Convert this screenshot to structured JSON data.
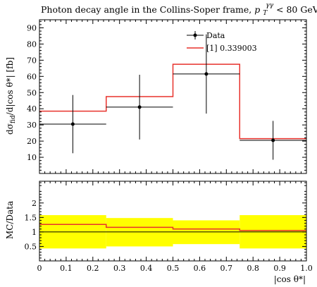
{
  "chart_data": {
    "type": "histogram",
    "title": "Photon decay angle in the Collins-Soper frame, p_T^γγ < 80 GeV",
    "title_main": "Photon decay angle in the Collins-Soper frame,",
    "title_cut_var": "p",
    "title_cut_sub": "T",
    "title_cut_sup": "γγ",
    "title_cut_rest": " < 80 GeV",
    "xlabel": "|cos θ*|",
    "ylabel_top": "dσfid/d|cos θ*| [fb]",
    "ylabel_top_parts": {
      "pre": "dσ",
      "sub": "fid",
      "post": "/d|cos θ*| [fb]"
    },
    "ylabel_bottom": "MC/Data",
    "xlim": [
      0,
      1.0
    ],
    "ylim_top": [
      0,
      95
    ],
    "ylim_bottom": [
      0,
      2.75
    ],
    "x_ticks": [
      "0",
      "0.1",
      "0.2",
      "0.3",
      "0.4",
      "0.5",
      "0.6",
      "0.7",
      "0.8",
      "0.9",
      "1.0"
    ],
    "y_ticks_top": [
      "10",
      "20",
      "30",
      "40",
      "50",
      "60",
      "70",
      "80",
      "90"
    ],
    "y_ticks_bottom": [
      "0.5",
      "1",
      "1.5",
      "2"
    ],
    "bin_edges": [
      0,
      0.25,
      0.5,
      0.75,
      1.0
    ],
    "series": [
      {
        "name": "Data",
        "kind": "points",
        "color": "#000000",
        "x": [
          0.125,
          0.375,
          0.625,
          0.875
        ],
        "y": [
          30.5,
          41.0,
          61.5,
          20.5
        ],
        "y_err_low": [
          18.0,
          20.0,
          24.5,
          12.0
        ],
        "y_err_high": [
          18.0,
          20.0,
          24.5,
          12.0
        ]
      },
      {
        "name": "[1] 0.339003",
        "kind": "step",
        "color": "#e8322c",
        "values": [
          38.5,
          47.5,
          67.5,
          21.5
        ]
      }
    ],
    "ratio": {
      "band_low": [
        0.43,
        0.5,
        0.58,
        0.43
      ],
      "band_high": [
        1.58,
        1.48,
        1.4,
        1.58
      ],
      "band_color": "#ffff00",
      "mc_over_data": [
        1.26,
        1.16,
        1.1,
        1.05
      ],
      "reference": 1.0
    },
    "legend": {
      "placement": "top-right",
      "entries": [
        "Data",
        "[1] 0.339003"
      ]
    }
  }
}
